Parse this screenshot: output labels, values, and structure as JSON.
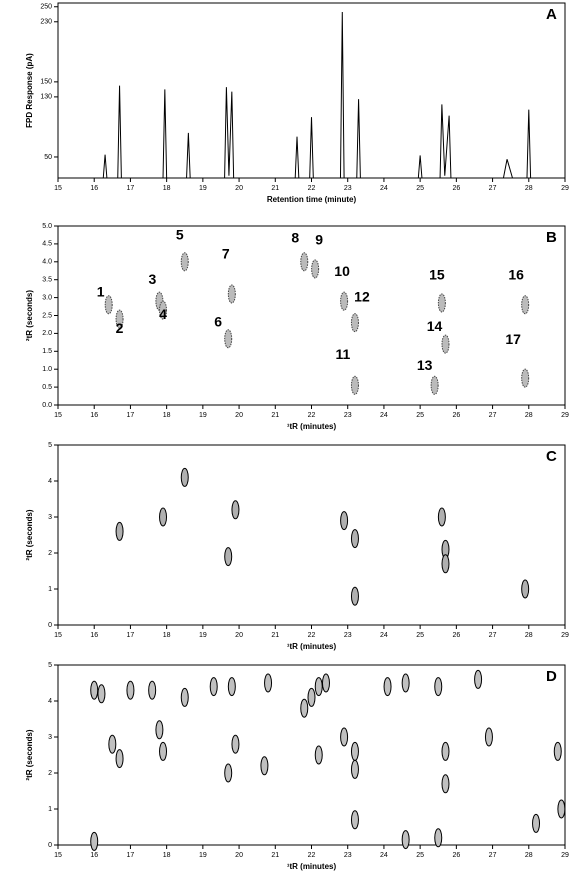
{
  "chart_data": [
    {
      "type": "line",
      "title": "A",
      "xlabel": "Retention time (minute)",
      "ylabel": "FPD Response (pA)",
      "color": "#000000",
      "x": [
        15.0,
        16.25,
        16.3,
        16.35,
        16.65,
        16.7,
        16.75,
        17.9,
        17.95,
        18.0,
        18.55,
        18.6,
        18.65,
        19.6,
        19.65,
        19.72,
        19.8,
        19.85,
        21.55,
        21.6,
        21.65,
        21.95,
        22.0,
        22.05,
        22.8,
        22.85,
        22.9,
        23.25,
        23.3,
        23.35,
        24.95,
        25.0,
        25.05,
        25.55,
        25.6,
        25.68,
        25.8,
        25.85,
        27.3,
        27.4,
        27.55,
        27.95,
        28.0,
        28.05,
        29.0
      ],
      "values": [
        22,
        22,
        53,
        22,
        22,
        145,
        22,
        22,
        140,
        22,
        22,
        82,
        22,
        22,
        143,
        25,
        137,
        22,
        22,
        77,
        22,
        22,
        103,
        22,
        22,
        243,
        22,
        22,
        127,
        22,
        22,
        52,
        22,
        22,
        120,
        25,
        105,
        22,
        22,
        47,
        22,
        22,
        113,
        22,
        22
      ],
      "xlim": [
        15,
        29
      ],
      "xticks": [
        15,
        16,
        17,
        18,
        19,
        20,
        21,
        22,
        23,
        24,
        25,
        26,
        27,
        28,
        29
      ],
      "ylim": [
        22,
        255
      ],
      "yticks": [
        50,
        130,
        150,
        230,
        250
      ]
    },
    {
      "type": "scatter",
      "title": "B",
      "xlabel": "¹tR (minutes)",
      "ylabel": "²tR (seconds)",
      "color": "#444444",
      "fill": "#bbbbbb",
      "x": [
        16.4,
        16.7,
        17.8,
        17.9,
        18.5,
        19.7,
        19.8,
        21.8,
        22.1,
        22.9,
        23.2,
        23.2,
        25.4,
        25.7,
        25.6,
        27.9,
        27.9
      ],
      "values": [
        2.8,
        2.4,
        2.9,
        2.65,
        4.0,
        1.85,
        3.1,
        4.0,
        3.8,
        2.9,
        0.55,
        2.3,
        0.55,
        1.7,
        2.85,
        2.8,
        0.75
      ],
      "labels": [
        "1",
        "2",
        "3",
        "4",
        "5",
        "6",
        "7",
        "8",
        "9",
        "10",
        "11",
        "12",
        "13",
        "14",
        "15",
        "16",
        "17"
      ],
      "xlim": [
        15,
        29
      ],
      "xticks": [
        15,
        16,
        17,
        18,
        19,
        20,
        21,
        22,
        23,
        24,
        25,
        26,
        27,
        28,
        29
      ],
      "ylim": [
        0,
        5
      ],
      "yticks": [
        {
          "value": 0,
          "label": "0.0"
        },
        0.5,
        {
          "value": 1,
          "label": "1.0"
        },
        1.5,
        {
          "value": 2,
          "label": "2.0"
        },
        2.5,
        {
          "value": 3,
          "label": "3.0"
        },
        3.5,
        {
          "value": 4,
          "label": "4.0"
        },
        4.5,
        {
          "value": 5,
          "label": "5.0"
        }
      ]
    },
    {
      "type": "scatter",
      "title": "C",
      "xlabel": "¹tR (minutes)",
      "ylabel": "²tR (seconds)",
      "color": "#000000",
      "fill": "#b0b0b0",
      "x": [
        16.7,
        17.9,
        18.5,
        19.9,
        19.7,
        22.9,
        23.2,
        23.2,
        25.6,
        25.7,
        25.7,
        27.9
      ],
      "values": [
        2.6,
        3.0,
        4.1,
        3.2,
        1.9,
        2.9,
        2.4,
        0.8,
        3.0,
        2.1,
        1.7,
        1.0
      ],
      "xlim": [
        15,
        29
      ],
      "xticks": [
        15,
        16,
        17,
        18,
        19,
        20,
        21,
        22,
        23,
        24,
        25,
        26,
        27,
        28,
        29
      ],
      "ylim": [
        0,
        5
      ],
      "yticks": [
        0,
        1,
        2,
        3,
        4,
        5
      ]
    },
    {
      "type": "scatter",
      "title": "D",
      "xlabel": "¹tR (minutes)",
      "ylabel": "²tR (seconds)",
      "color": "#000000",
      "fill": "#c0c0c0",
      "x": [
        16.0,
        16.2,
        17.0,
        17.6,
        18.5,
        19.3,
        19.8,
        20.8,
        21.8,
        22.0,
        22.2,
        22.4,
        24.1,
        24.6,
        25.5,
        26.6,
        16.5,
        16.7,
        17.8,
        17.9,
        19.7,
        19.9,
        20.7,
        22.2,
        22.9,
        23.2,
        23.2,
        25.7,
        25.7,
        26.9,
        28.8,
        28.9,
        16.0,
        23.2,
        24.6,
        25.5,
        28.2
      ],
      "values": [
        4.3,
        4.2,
        4.3,
        4.3,
        4.1,
        4.4,
        4.4,
        4.5,
        3.8,
        4.1,
        4.4,
        4.5,
        4.4,
        4.5,
        4.4,
        4.6,
        2.8,
        2.4,
        3.2,
        2.6,
        2.0,
        2.8,
        2.2,
        2.5,
        3.0,
        2.6,
        2.1,
        2.6,
        1.7,
        3.0,
        2.6,
        1.0,
        0.1,
        0.7,
        0.15,
        0.2,
        0.6
      ],
      "xlim": [
        15,
        29
      ],
      "xticks": [
        15,
        16,
        17,
        18,
        19,
        20,
        21,
        22,
        23,
        24,
        25,
        26,
        27,
        28,
        29
      ],
      "ylim": [
        0,
        5
      ],
      "yticks": [
        0,
        1,
        2,
        3,
        4,
        5
      ]
    }
  ]
}
